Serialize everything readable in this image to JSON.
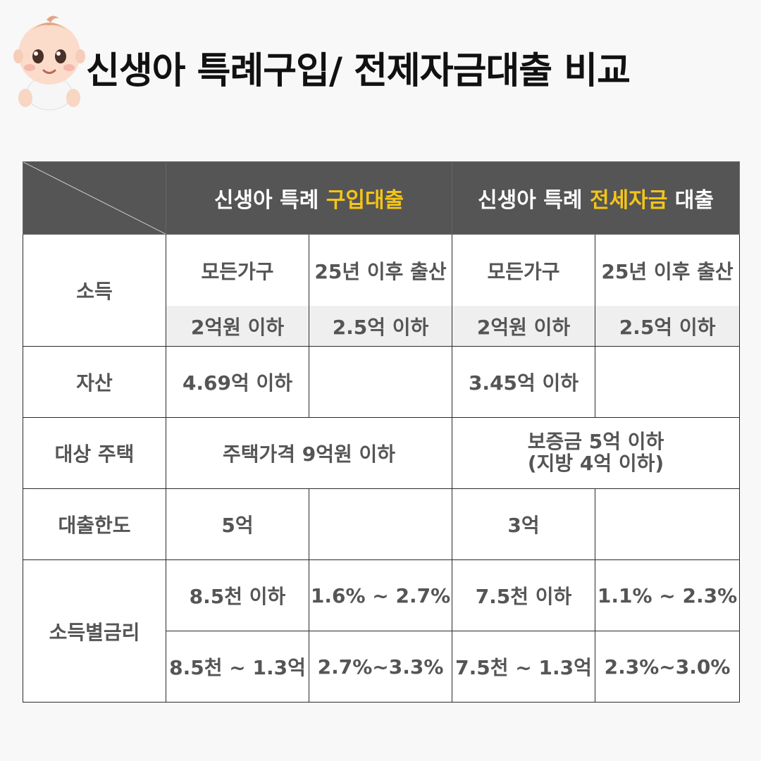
{
  "title": "신생아 특례구입/ 전제자금대출 비교",
  "illustration": "baby-icon",
  "colors": {
    "header_bg": "#555555",
    "highlight": "#f5c518",
    "subrow_bg": "#efefef"
  },
  "table": {
    "headers": [
      {
        "prefix": "신생아 특례 ",
        "highlight": "구입대출",
        "suffix": ""
      },
      {
        "prefix": "신생아 특례 ",
        "highlight": "전세자금",
        "suffix": " 대출"
      }
    ],
    "income": {
      "label": "소득",
      "groups": [
        "모든가구",
        "25년 이후 출산",
        "모든가구",
        "25년 이후 출산"
      ],
      "limits": [
        "2억원 이하",
        "2.5억 이하",
        "2억원 이하",
        "2.5억 이하"
      ]
    },
    "assets": {
      "label": "자산",
      "values": [
        "4.69억 이하",
        "",
        "3.45억 이하",
        ""
      ]
    },
    "housing": {
      "label": "대상 주택",
      "purchase": "주택가격 9억원 이하",
      "jeonse_line1": "보증금 5억 이하",
      "jeonse_line2": "(지방 4억 이하)"
    },
    "limit": {
      "label": "대출한도",
      "values": [
        "5억",
        "",
        "3억",
        ""
      ]
    },
    "rates": {
      "label": "소득별금리",
      "rows": [
        [
          "8.5천 이하",
          "1.6% ~ 2.7%",
          "7.5천 이하",
          "1.1% ~ 2.3%"
        ],
        [
          "8.5천 ~ 1.3억",
          "2.7%~3.3%",
          "7.5천 ~ 1.3억",
          "2.3%~3.0%"
        ]
      ]
    }
  }
}
